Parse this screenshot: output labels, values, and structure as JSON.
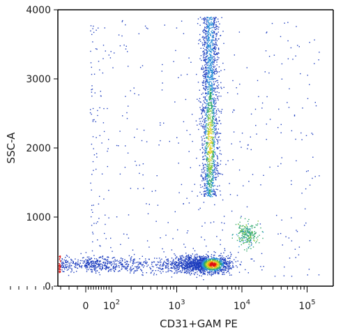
{
  "chart_data": {
    "type": "scatter",
    "subtype": "flow-cytometry density dot plot",
    "xlabel": "CD31+GAM PE",
    "ylabel": "SSC-A",
    "x_scale": "biexponential (log above ~10^2)",
    "y_scale": "linear",
    "ylim": [
      0,
      4000
    ],
    "y_ticks": [
      {
        "value": 0,
        "label": "0"
      },
      {
        "value": 1000,
        "label": "1000"
      },
      {
        "value": 2000,
        "label": "2000"
      },
      {
        "value": 3000,
        "label": "3000"
      },
      {
        "value": 4000,
        "label": "4000"
      }
    ],
    "x_ticks": [
      {
        "value": 0,
        "label": "0",
        "sup": ""
      },
      {
        "value": 100,
        "label": "10",
        "sup": "2"
      },
      {
        "value": 1000,
        "label": "10",
        "sup": "3"
      },
      {
        "value": 10000,
        "label": "10",
        "sup": "4"
      },
      {
        "value": 100000,
        "label": "10",
        "sup": "5"
      }
    ],
    "grid": false,
    "colormap": [
      "#1f3fbf",
      "#2a8fd8",
      "#2fa86a",
      "#8fc93a",
      "#e8d020",
      "#f08a10",
      "#e01010"
    ],
    "populations": [
      {
        "description": "CD31-negative low-SSC cluster",
        "x_range": [
          -30,
          8000
        ],
        "y_range": [
          150,
          500
        ],
        "peak_x": 3500,
        "peak_y": 320
      },
      {
        "description": "CD31-positive high-SSC column",
        "x_range": [
          2000,
          5500
        ],
        "y_range": [
          1300,
          3900
        ],
        "peak_x": 3200,
        "peak_y": 2100
      },
      {
        "description": "small bright cluster",
        "x_range": [
          8000,
          20000
        ],
        "y_range": [
          550,
          950
        ],
        "peak_x": 12000,
        "peak_y": 750
      }
    ]
  }
}
